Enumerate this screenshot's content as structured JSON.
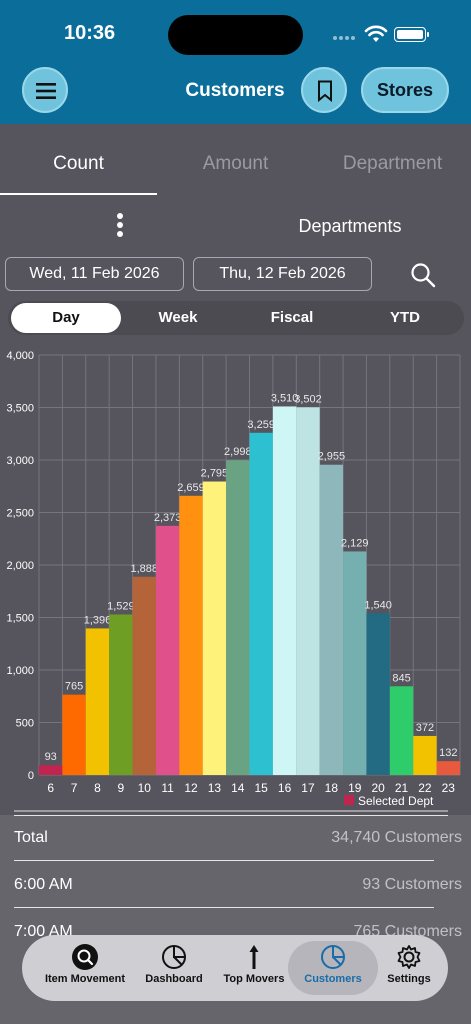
{
  "status_bar": {
    "time": "10:36"
  },
  "header": {
    "title": "Customers",
    "stores_label": "Stores"
  },
  "tabs": [
    {
      "label": "Count",
      "active": true
    },
    {
      "label": "Amount",
      "active": false
    },
    {
      "label": "Department",
      "active": false
    }
  ],
  "filter": {
    "departments_label": "Departments",
    "date_from": "Wed, 11 Feb 2026",
    "date_to": "Thu, 12 Feb 2026"
  },
  "periods": [
    {
      "label": "Day",
      "active": true
    },
    {
      "label": "Week",
      "active": false
    },
    {
      "label": "Fiscal",
      "active": false
    },
    {
      "label": "YTD",
      "active": false
    }
  ],
  "chart_data": {
    "type": "bar",
    "categories": [
      "6",
      "7",
      "8",
      "9",
      "10",
      "11",
      "12",
      "13",
      "14",
      "15",
      "16",
      "17",
      "18",
      "19",
      "20",
      "21",
      "22",
      "23"
    ],
    "values": [
      93,
      765,
      1396,
      1529,
      1888,
      2373,
      2659,
      2795,
      2998,
      3259,
      3510,
      3502,
      2955,
      2129,
      1540,
      845,
      372,
      132
    ],
    "colors": [
      "#c0244f",
      "#ff6a00",
      "#f2c200",
      "#6e9e24",
      "#b5643a",
      "#e0508a",
      "#ff9010",
      "#fff27a",
      "#6aa383",
      "#2cc0d0",
      "#cdf6f4",
      "#bde4e2",
      "#8db7ba",
      "#76afb0",
      "#226b82",
      "#2fcc6c",
      "#f2c200",
      "#e85a3e"
    ],
    "ylim": [
      0,
      4000
    ],
    "yticks": [
      "0",
      "500",
      "1,000",
      "1,500",
      "2,000",
      "2,500",
      "3,000",
      "3,500",
      "4,000"
    ],
    "data_labels": [
      "93",
      "765",
      "1,396",
      "1,529",
      "1,888",
      "2,373",
      "2,659",
      "2,795",
      "2,998",
      "3,259",
      "3,510",
      "3,502",
      "2,955",
      "2,129",
      "1,540",
      "845",
      "372",
      "132"
    ],
    "legend": {
      "label": "Selected Dept",
      "color": "#c0244f",
      "position": "bottom-right"
    },
    "grid": true
  },
  "summary": {
    "rows": [
      {
        "label": "Total",
        "value": "34,740 Customers"
      },
      {
        "label": "6:00 AM",
        "value": "93 Customers"
      },
      {
        "label": "7:00 AM",
        "value": "765 Customers"
      }
    ]
  },
  "tabbar": [
    {
      "label": "Item Movement",
      "icon": "item-movement-icon",
      "active": false
    },
    {
      "label": "Dashboard",
      "icon": "dashboard-icon",
      "active": false
    },
    {
      "label": "Top Movers",
      "icon": "top-movers-icon",
      "active": false
    },
    {
      "label": "Customers",
      "icon": "customers-icon",
      "active": true
    },
    {
      "label": "Settings",
      "icon": "settings-icon",
      "active": false
    }
  ]
}
